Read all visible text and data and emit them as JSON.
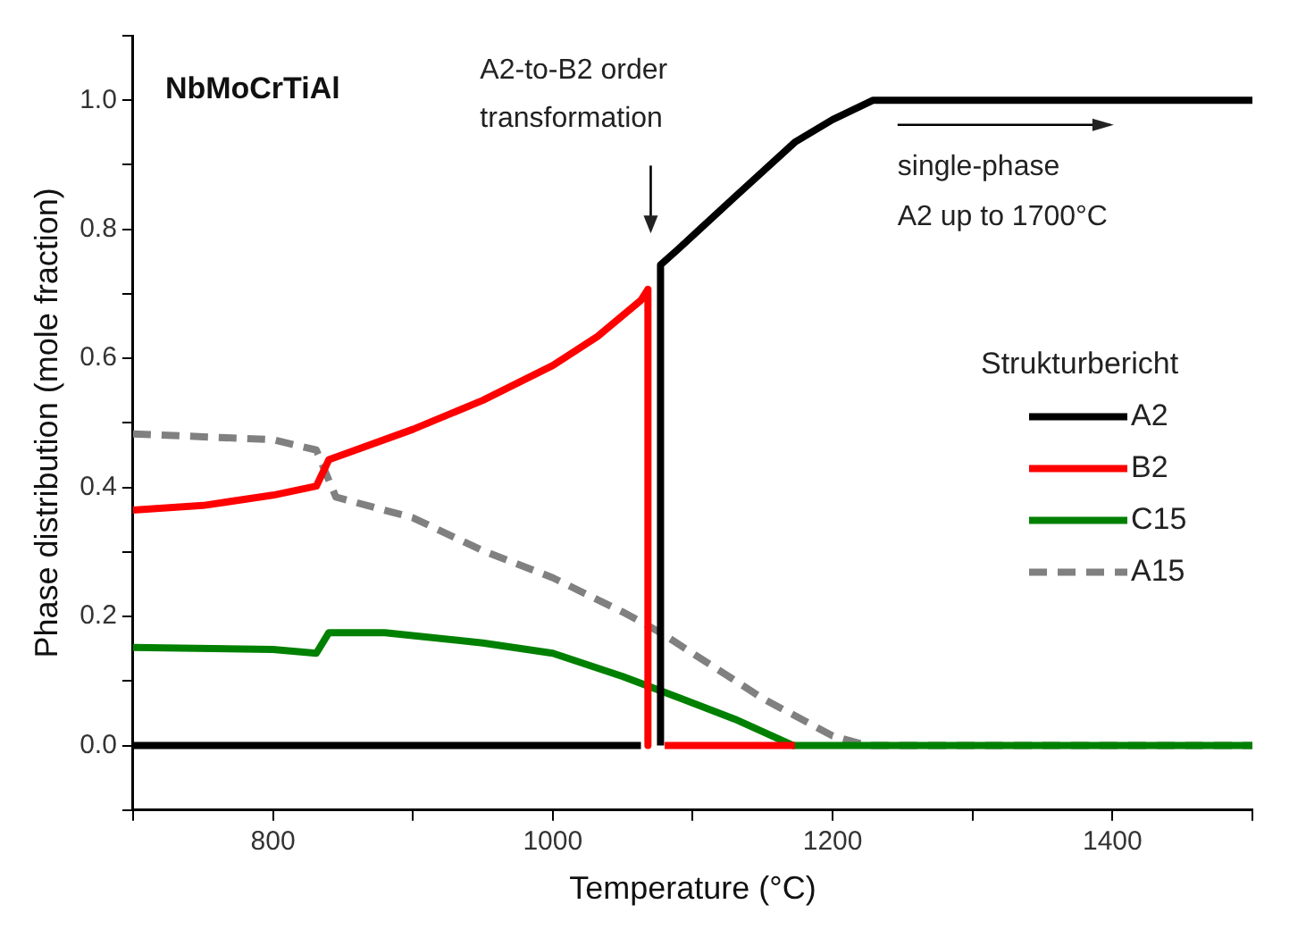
{
  "chart_data": {
    "type": "line",
    "title": "NbMoCrTiAl",
    "xlabel": "Temperature (°C)",
    "ylabel": "Phase distribution (mole fraction)",
    "legend_title": "Strukturbericht",
    "legend": "right",
    "grid": false,
    "marker": "none",
    "xlim": [
      700,
      1500
    ],
    "xticks": [
      {
        "value": 700,
        "label": null
      },
      800,
      {
        "value": 900,
        "label": null
      },
      1000,
      {
        "value": 1100,
        "label": null
      },
      1200,
      {
        "value": 1300,
        "label": null
      },
      1400,
      {
        "value": 1500,
        "label": null
      }
    ],
    "ylim": [
      -0.1,
      1.1
    ],
    "yticks": [
      {
        "value": -0.1,
        "label": null
      },
      {
        "value": 0,
        "label": "0.0"
      },
      {
        "value": 0.1,
        "label": null
      },
      {
        "value": 0.2,
        "label": "0.2"
      },
      {
        "value": 0.3,
        "label": null
      },
      {
        "value": 0.4,
        "label": "0.4"
      },
      {
        "value": 0.5,
        "label": null
      },
      {
        "value": 0.6,
        "label": "0.6"
      },
      {
        "value": 0.7,
        "label": null
      },
      {
        "value": 0.8,
        "label": "0.8"
      },
      {
        "value": 0.9,
        "label": null
      },
      {
        "value": 1,
        "label": "1.0"
      },
      {
        "value": 1.1,
        "label": null
      }
    ],
    "annotations": [
      "A2-to-B2 order\ntransformation",
      "single-phase\nA2 up to 1700°C"
    ],
    "series": [
      {
        "name": "A2",
        "color": "#000000",
        "line_style": "solid",
        "x": [
          700,
          1063,
          1070,
          1077,
          1077,
          1090,
          1130,
          1173,
          1200,
          1229,
          1500
        ],
        "values": [
          0,
          0,
          null,
          0,
          0.745,
          0.77,
          0.85,
          0.935,
          0.97,
          1,
          1
        ]
      },
      {
        "name": "B2",
        "color": "#ff0000",
        "line_style": "solid",
        "x": [
          700,
          750,
          800,
          831,
          840,
          900,
          950,
          1000,
          1032,
          1063,
          1068,
          1068,
          1073,
          1080,
          1173
        ],
        "values": [
          0.365,
          0.372,
          0.388,
          0.402,
          0.443,
          0.49,
          0.535,
          0.589,
          0.634,
          0.69,
          0.707,
          0,
          null,
          0,
          0
        ]
      },
      {
        "name": "C15",
        "color": "#008000",
        "line_style": "solid",
        "x": [
          700,
          800,
          831,
          840,
          880,
          950,
          1000,
          1050,
          1077,
          1130,
          1172,
          1500
        ],
        "values": [
          0.152,
          0.149,
          0.143,
          0.175,
          0.175,
          0.159,
          0.143,
          0.107,
          0.085,
          0.041,
          0,
          0
        ]
      },
      {
        "name": "A15",
        "color": "#808080",
        "line_style": "dashed",
        "x": [
          700,
          800,
          831,
          845,
          900,
          950,
          1000,
          1050,
          1077,
          1100,
          1150,
          1200,
          1225,
          1500
        ],
        "values": [
          0.483,
          0.474,
          0.458,
          0.385,
          0.353,
          0.302,
          0.26,
          0.207,
          0.175,
          0.143,
          0.073,
          0.015,
          0,
          0
        ]
      }
    ]
  }
}
